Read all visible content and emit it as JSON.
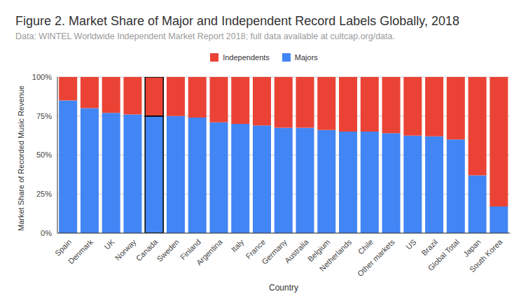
{
  "chart_data": {
    "type": "bar",
    "title": "Figure 2. Market Share of Major and Independent Record Labels Globally, 2018",
    "subtitle": "Data: WINTEL Worldwide Independent Market Report 2018; full data available at cultcap.org/data.",
    "x_label": "Country",
    "y_label": "Market Share of Recorded Music Revenue",
    "categories": [
      "Spain",
      "Denmark",
      "UK",
      "Norway",
      "Canada",
      "Sweden",
      "Finland",
      "Argentina",
      "Italy",
      "France",
      "Germany",
      "Australia",
      "Belgium",
      "Netherlands",
      "Chile",
      "Other markets",
      "US",
      "Brazil",
      "Global Total",
      "Japan",
      "South Korea"
    ],
    "series": [
      {
        "name": "Independents",
        "color": "#ea4335",
        "values": [
          15,
          20,
          23,
          24,
          25,
          25,
          26,
          29,
          30,
          31,
          32.5,
          32.5,
          34,
          35,
          35,
          36,
          37.5,
          38,
          40,
          63,
          83
        ]
      },
      {
        "name": "Majors",
        "color": "#4285f4",
        "values": [
          85,
          80,
          77,
          76,
          75,
          75,
          74,
          71,
          70,
          69,
          67.5,
          67.5,
          66,
          65,
          65,
          64,
          62.5,
          62,
          60,
          37,
          17
        ]
      }
    ],
    "stacked": true,
    "ylim": [
      0,
      100
    ],
    "yticks": [
      {
        "value": 0,
        "label": "0%"
      },
      {
        "value": 25,
        "label": "25%"
      },
      {
        "value": 50,
        "label": "50%"
      },
      {
        "value": 75,
        "label": "75%"
      },
      {
        "value": 100,
        "label": "100%"
      }
    ],
    "grid": true,
    "legend": "top"
  }
}
